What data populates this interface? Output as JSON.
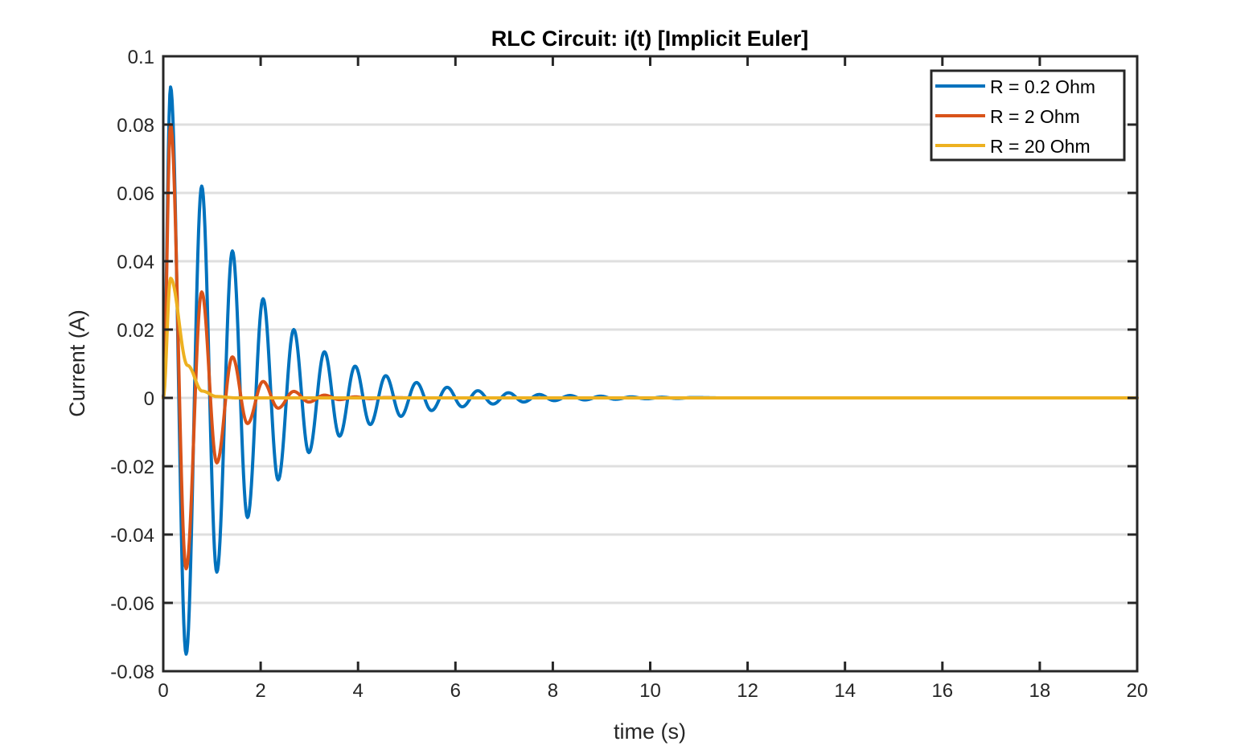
{
  "chart_data": {
    "type": "line",
    "title": "RLC Circuit: i(t) [Implicit Euler]",
    "xlabel": "time (s)",
    "ylabel": "Current (A)",
    "xlim": [
      0,
      20
    ],
    "ylim": [
      -0.08,
      0.1
    ],
    "xticks": [
      0,
      2,
      4,
      6,
      8,
      10,
      12,
      14,
      16,
      18,
      20
    ],
    "xtick_labels": [
      "0",
      "2",
      "4",
      "6",
      "8",
      "10",
      "12",
      "14",
      "16",
      "18",
      "20"
    ],
    "yticks": [
      -0.08,
      -0.06,
      -0.04,
      -0.02,
      0,
      0.02,
      0.04,
      0.06,
      0.08,
      0.1
    ],
    "ytick_labels": [
      "-0.08",
      "-0.06",
      "-0.04",
      "-0.02",
      "0",
      "0.02",
      "0.04",
      "0.06",
      "0.08",
      "0.1"
    ],
    "grid": "horizontal",
    "legend_position": "top-right",
    "series": [
      {
        "name": "R = 0.2 Ohm",
        "color": "#0072BD",
        "points": [
          [
            0,
            0
          ],
          [
            0.15,
            0.091
          ],
          [
            0.47,
            -0.075
          ],
          [
            0.79,
            0.062
          ],
          [
            1.1,
            -0.051
          ],
          [
            1.42,
            0.043
          ],
          [
            1.73,
            -0.035
          ],
          [
            2.05,
            0.029
          ],
          [
            2.36,
            -0.024
          ],
          [
            2.68,
            0.02
          ],
          [
            2.99,
            -0.016
          ],
          [
            3.31,
            0.0135
          ],
          [
            3.62,
            -0.0112
          ],
          [
            3.94,
            0.0093
          ],
          [
            4.25,
            -0.0078
          ],
          [
            4.57,
            0.0065
          ],
          [
            4.88,
            -0.0054
          ],
          [
            5.2,
            0.0045
          ],
          [
            5.51,
            -0.0037
          ],
          [
            5.83,
            0.0031
          ],
          [
            6.14,
            -0.0026
          ],
          [
            6.46,
            0.0021
          ],
          [
            6.77,
            -0.0018
          ],
          [
            7.09,
            0.0015
          ],
          [
            7.4,
            -0.0012
          ],
          [
            7.72,
            0.001
          ],
          [
            8.03,
            -0.0008
          ],
          [
            8.35,
            0.0007
          ],
          [
            8.66,
            -0.0006
          ],
          [
            8.98,
            0.0005
          ],
          [
            9.29,
            -0.0004
          ],
          [
            9.61,
            0.0003
          ],
          [
            9.92,
            -0.00025
          ],
          [
            10.24,
            0.0002
          ],
          [
            10.55,
            -0.00015
          ],
          [
            10.87,
            0.0001
          ],
          [
            11.5,
            0
          ],
          [
            20,
            0
          ]
        ]
      },
      {
        "name": "R = 2 Ohm",
        "color": "#D95319",
        "points": [
          [
            0,
            0
          ],
          [
            0.15,
            0.08
          ],
          [
            0.47,
            -0.05
          ],
          [
            0.79,
            0.031
          ],
          [
            1.1,
            -0.019
          ],
          [
            1.42,
            0.012
          ],
          [
            1.73,
            -0.0075
          ],
          [
            2.05,
            0.0048
          ],
          [
            2.36,
            -0.003
          ],
          [
            2.68,
            0.0019
          ],
          [
            2.99,
            -0.0012
          ],
          [
            3.31,
            0.0008
          ],
          [
            3.62,
            -0.0005
          ],
          [
            3.94,
            0.0003
          ],
          [
            4.25,
            -0.0002
          ],
          [
            4.57,
            0.0001
          ],
          [
            5.2,
            0
          ],
          [
            20,
            0
          ]
        ]
      },
      {
        "name": "R = 20 Ohm",
        "color": "#EDB120",
        "points": [
          [
            0,
            0
          ],
          [
            0.15,
            0.035
          ],
          [
            0.5,
            0.0095
          ],
          [
            0.8,
            0.002
          ],
          [
            1.1,
            0.0004
          ],
          [
            1.5,
            0
          ],
          [
            20,
            0
          ]
        ]
      }
    ]
  }
}
